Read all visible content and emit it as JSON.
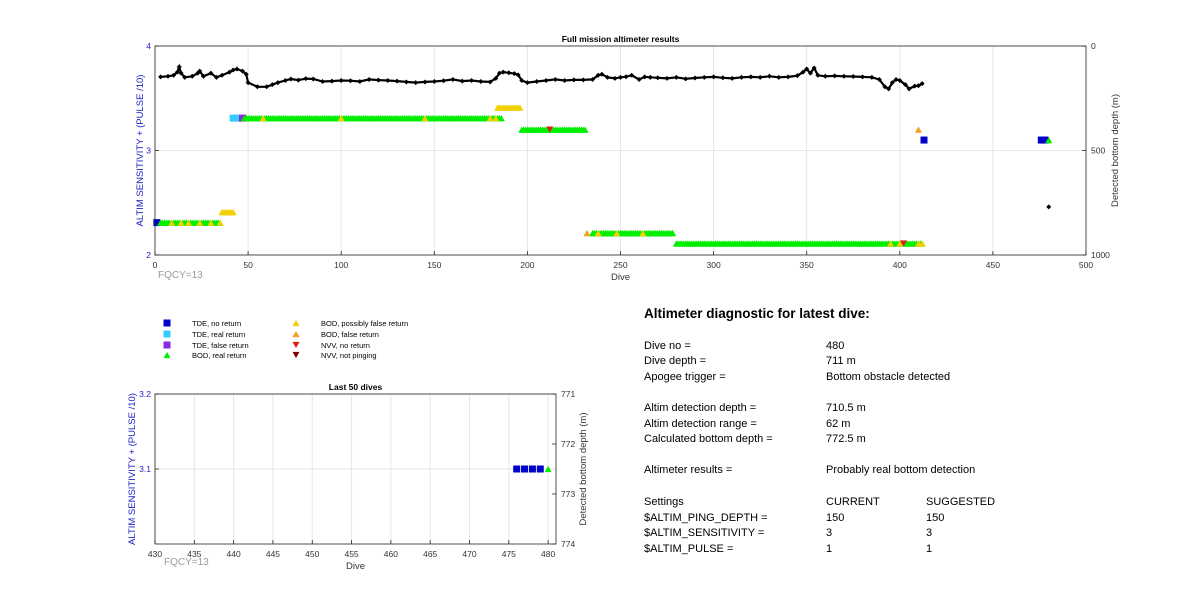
{
  "chart_data": [
    {
      "type": "scatter",
      "title": "Full mission altimeter results",
      "xlabel": "Dive",
      "ylabel": "ALTIM SENSITIVITY + (PULSE /10)",
      "ylabel_right": "Detected bottom depth (m)",
      "xlim": [
        0,
        500
      ],
      "ylim": [
        2,
        4
      ],
      "ylim_right": [
        0,
        1000
      ],
      "right_axis_reversed": true,
      "xticks": [
        "0",
        "50",
        "100",
        "150",
        "200",
        "250",
        "300",
        "350",
        "400",
        "450",
        "500"
      ],
      "yticks": [
        "2",
        "3",
        "4"
      ],
      "yticks_right": [
        "0",
        "500",
        "1000"
      ],
      "grid": true,
      "fqcy_label": "FQCY=13",
      "series": [
        {
          "name": "TDE, no return",
          "marker": "square",
          "color": "#0000cc",
          "points": [
            [
              1,
              2.31
            ],
            [
              413,
              3.1
            ],
            [
              476,
              3.1
            ],
            [
              478,
              3.1
            ]
          ]
        },
        {
          "name": "TDE, real return",
          "marker": "square",
          "color": "#33ccff",
          "points": [
            [
              42,
              3.31
            ],
            [
              44,
              3.31
            ]
          ]
        },
        {
          "name": "TDE, false return",
          "marker": "square",
          "color": "#8a2be2",
          "points": [
            [
              47,
              3.31
            ]
          ]
        },
        {
          "name": "BOD, real return",
          "marker": "triangle-up",
          "color": "#00ee00",
          "ranges": [
            {
              "from": 3,
              "to": 35,
              "y": 2.31,
              "step": 1
            },
            {
              "from": 48,
              "to": 186,
              "y": 3.31,
              "step": 1
            },
            {
              "from": 197,
              "to": 231,
              "y": 3.2,
              "step": 1
            },
            {
              "from": 235,
              "to": 278,
              "y": 2.21,
              "step": 1
            },
            {
              "from": 280,
              "to": 412,
              "y": 2.11,
              "step": 1
            }
          ],
          "points": [
            [
              480,
              3.1
            ]
          ]
        },
        {
          "name": "BOD, possibly false return",
          "marker": "triangle-up",
          "color": "#f2d000",
          "ranges": [
            {
              "from": 36,
              "to": 42,
              "y": 2.41,
              "step": 1
            },
            {
              "from": 184,
              "to": 196,
              "y": 3.41,
              "step": 1
            }
          ],
          "points": [
            [
              9,
              2.31
            ],
            [
              14,
              2.31
            ],
            [
              18,
              2.31
            ],
            [
              24,
              2.31
            ],
            [
              30,
              2.31
            ],
            [
              35,
              2.31
            ],
            [
              58,
              3.31
            ],
            [
              100,
              3.31
            ],
            [
              145,
              3.31
            ],
            [
              180,
              3.31
            ],
            [
              183,
              3.31
            ],
            [
              238,
              2.21
            ],
            [
              248,
              2.21
            ],
            [
              262,
              2.21
            ],
            [
              395,
              2.11
            ],
            [
              400,
              2.11
            ],
            [
              410,
              2.11
            ],
            [
              412,
              2.11
            ]
          ]
        },
        {
          "name": "BOD, false return",
          "marker": "triangle-up",
          "color": "#f0a020",
          "points": [
            [
              410,
              3.2
            ],
            [
              232,
              2.21
            ]
          ]
        },
        {
          "name": "NVV, no return",
          "marker": "triangle-down",
          "color": "#e02010",
          "points": [
            [
              212,
              3.2
            ],
            [
              402,
              2.11
            ]
          ]
        },
        {
          "name": "NVV, not pinging",
          "marker": "triangle-down",
          "color": "#800000",
          "points": []
        },
        {
          "name": "Detected bottom depth",
          "marker": "diamond",
          "color": "#000000",
          "axis": "right",
          "points": [
            [
              3,
              148
            ],
            [
              7,
              145
            ],
            [
              10,
              140
            ],
            [
              12,
              125
            ],
            [
              13,
              100
            ],
            [
              14,
              130
            ],
            [
              16,
              150
            ],
            [
              20,
              145
            ],
            [
              23,
              130
            ],
            [
              24,
              120
            ],
            [
              26,
              145
            ],
            [
              30,
              130
            ],
            [
              33,
              150
            ],
            [
              36,
              140
            ],
            [
              40,
              125
            ],
            [
              42,
              115
            ],
            [
              44,
              110
            ],
            [
              47,
              120
            ],
            [
              49,
              135
            ],
            [
              50,
              175
            ],
            [
              55,
              195
            ],
            [
              60,
              195
            ],
            [
              63,
              185
            ],
            [
              66,
              175
            ],
            [
              70,
              165
            ],
            [
              73,
              158
            ],
            [
              77,
              163
            ],
            [
              81,
              156
            ],
            [
              85,
              158
            ],
            [
              90,
              170
            ],
            [
              95,
              168
            ],
            [
              100,
              165
            ],
            [
              105,
              166
            ],
            [
              110,
              170
            ],
            [
              115,
              160
            ],
            [
              120,
              163
            ],
            [
              125,
              165
            ],
            [
              130,
              168
            ],
            [
              135,
              172
            ],
            [
              140,
              175
            ],
            [
              145,
              172
            ],
            [
              150,
              170
            ],
            [
              155,
              166
            ],
            [
              160,
              160
            ],
            [
              165,
              168
            ],
            [
              170,
              165
            ],
            [
              175,
              170
            ],
            [
              180,
              172
            ],
            [
              183,
              155
            ],
            [
              185,
              130
            ],
            [
              187,
              125
            ],
            [
              190,
              128
            ],
            [
              193,
              132
            ],
            [
              195,
              138
            ],
            [
              197,
              165
            ],
            [
              200,
              175
            ],
            [
              205,
              170
            ],
            [
              210,
              165
            ],
            [
              215,
              160
            ],
            [
              220,
              165
            ],
            [
              225,
              162
            ],
            [
              230,
              162
            ],
            [
              235,
              160
            ],
            [
              238,
              140
            ],
            [
              240,
              135
            ],
            [
              243,
              150
            ],
            [
              247,
              155
            ],
            [
              250,
              150
            ],
            [
              253,
              147
            ],
            [
              256,
              140
            ],
            [
              260,
              160
            ],
            [
              263,
              148
            ],
            [
              266,
              150
            ],
            [
              270,
              152
            ],
            [
              275,
              155
            ],
            [
              280,
              150
            ],
            [
              285,
              157
            ],
            [
              290,
              153
            ],
            [
              295,
              150
            ],
            [
              300,
              148
            ],
            [
              305,
              152
            ],
            [
              310,
              155
            ],
            [
              315,
              150
            ],
            [
              320,
              148
            ],
            [
              325,
              150
            ],
            [
              330,
              145
            ],
            [
              335,
              150
            ],
            [
              340,
              148
            ],
            [
              345,
              142
            ],
            [
              348,
              125
            ],
            [
              350,
              110
            ],
            [
              352,
              130
            ],
            [
              354,
              105
            ],
            [
              356,
              140
            ],
            [
              360,
              145
            ],
            [
              365,
              143
            ],
            [
              370,
              145
            ],
            [
              375,
              146
            ],
            [
              380,
              148
            ],
            [
              385,
              150
            ],
            [
              389,
              160
            ],
            [
              392,
              195
            ],
            [
              394,
              205
            ],
            [
              396,
              175
            ],
            [
              398,
              160
            ],
            [
              400,
              165
            ],
            [
              403,
              185
            ],
            [
              405,
              205
            ],
            [
              408,
              192
            ],
            [
              410,
              190
            ],
            [
              412,
              180
            ],
            [
              480,
              770
            ]
          ]
        }
      ]
    },
    {
      "type": "scatter",
      "title": "Last 50 dives",
      "xlabel": "Dive",
      "ylabel": "ALTIM SENSITIVITY + (PULSE /10)",
      "ylabel_right": "Detected bottom depth (m)",
      "xlim": [
        430,
        481
      ],
      "ylim": [
        3.0,
        3.2
      ],
      "ylim_right": [
        771,
        774
      ],
      "right_axis_reversed": true,
      "xticks": [
        "430",
        "435",
        "440",
        "445",
        "450",
        "455",
        "460",
        "465",
        "470",
        "475",
        "480"
      ],
      "yticks": [
        "3.1",
        "3.2"
      ],
      "yticks_right": [
        "771",
        "772",
        "773",
        "774"
      ],
      "grid": true,
      "fqcy_label": "FQCY=13",
      "series": [
        {
          "name": "TDE, no return",
          "marker": "square",
          "color": "#0000cc",
          "points": [
            [
              476,
              3.1
            ],
            [
              477,
              3.1
            ],
            [
              478,
              3.1
            ],
            [
              479,
              3.1
            ]
          ]
        },
        {
          "name": "BOD, real return",
          "marker": "triangle-up",
          "color": "#00ee00",
          "points": [
            [
              480,
              3.1
            ]
          ]
        }
      ]
    }
  ],
  "legend": [
    {
      "label": "TDE, no return",
      "marker": "square",
      "color": "#0000cc"
    },
    {
      "label": "TDE, real return",
      "marker": "square",
      "color": "#33ccff"
    },
    {
      "label": "TDE, false return",
      "marker": "square",
      "color": "#8a2be2"
    },
    {
      "label": "BOD, real return",
      "marker": "triangle-up",
      "color": "#00ee00"
    },
    {
      "label": "BOD, possibly false return",
      "marker": "triangle-up",
      "color": "#f2d000"
    },
    {
      "label": "BOD, false return",
      "marker": "triangle-up",
      "color": "#f0a020"
    },
    {
      "label": "NVV, no return",
      "marker": "triangle-down",
      "color": "#e02010"
    },
    {
      "label": "NVV, not pinging",
      "marker": "triangle-down",
      "color": "#800000"
    }
  ],
  "diagnostic": {
    "title": "Altimeter diagnostic for latest dive:",
    "rows": [
      {
        "label": "Dive no =",
        "value": "480"
      },
      {
        "label": "Dive depth =",
        "value": "711 m"
      },
      {
        "label": "Apogee trigger =",
        "value": "Bottom obstacle detected"
      },
      {
        "label": "Altim detection depth =",
        "value": "710.5 m"
      },
      {
        "label": "Altim detection range =",
        "value": "62 m"
      },
      {
        "label": "Calculated bottom depth =",
        "value": "772.5 m"
      },
      {
        "label": "Altimeter results =",
        "value": "Probably real bottom detection"
      }
    ],
    "settings_header": {
      "label": "Settings",
      "current": "CURRENT",
      "suggested": "SUGGESTED"
    },
    "settings": [
      {
        "label": "$ALTIM_PING_DEPTH =",
        "current": "150",
        "suggested": "150"
      },
      {
        "label": "$ALTIM_SENSITIVITY =",
        "current": "3",
        "suggested": "3"
      },
      {
        "label": "$ALTIM_PULSE =",
        "current": "1",
        "suggested": "1"
      }
    ]
  }
}
